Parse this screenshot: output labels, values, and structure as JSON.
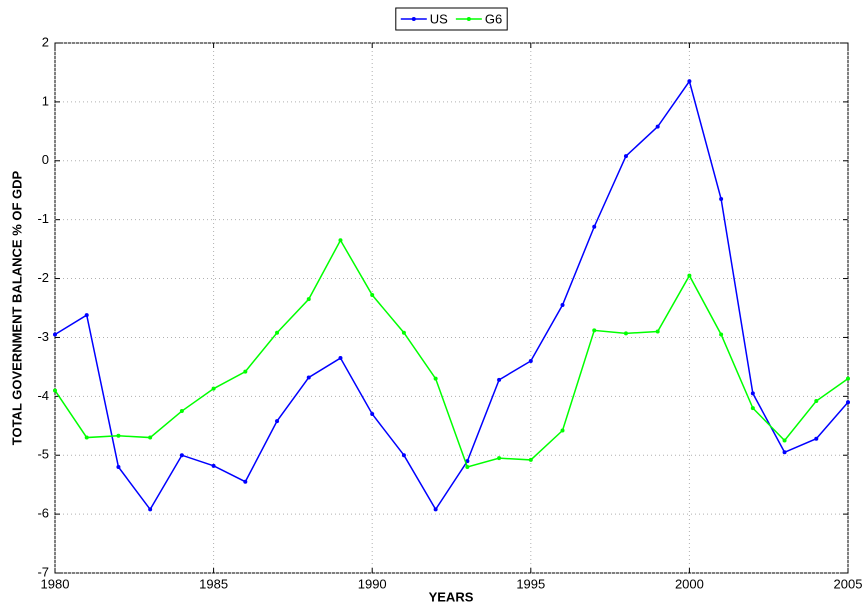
{
  "chart_data": {
    "type": "line",
    "x_label": "YEARS",
    "y_label": "TOTAL GOVERNMENT BALANCE % OF GDP",
    "x": [
      1980,
      1981,
      1982,
      1983,
      1984,
      1985,
      1986,
      1987,
      1988,
      1989,
      1990,
      1991,
      1992,
      1993,
      1994,
      1995,
      1996,
      1997,
      1998,
      1999,
      2000,
      2001,
      2002,
      2003,
      2004,
      2005
    ],
    "series": [
      {
        "name": "US",
        "color": "#0000ff",
        "values": [
          -2.95,
          -2.62,
          -5.2,
          -5.92,
          -5.0,
          -5.18,
          -5.45,
          -4.42,
          -3.68,
          -3.35,
          -4.3,
          -5.0,
          -5.92,
          -5.1,
          -3.72,
          -3.4,
          -2.45,
          -1.12,
          0.08,
          0.58,
          1.35,
          -0.65,
          -3.95,
          -4.95,
          -4.72,
          -4.1
        ]
      },
      {
        "name": "G6",
        "color": "#00ff00",
        "values": [
          -3.9,
          -4.7,
          -4.67,
          -4.7,
          -4.25,
          -3.87,
          -3.58,
          -2.92,
          -2.35,
          -1.35,
          -2.28,
          -2.92,
          -3.7,
          -5.2,
          -5.05,
          -5.08,
          -4.58,
          -2.88,
          -2.93,
          -2.9,
          -1.95,
          -2.95,
          -4.2,
          -4.75,
          -4.08,
          -3.7
        ]
      }
    ],
    "xlim": [
      1980,
      2005
    ],
    "xticks": [
      1980,
      1985,
      1990,
      1995,
      2000,
      2005
    ],
    "ylim": [
      -7,
      2
    ],
    "yticks": [
      -7,
      -6,
      -5,
      -4,
      -3,
      -2,
      -1,
      0,
      1,
      2
    ],
    "grid": true,
    "legend": "top"
  }
}
